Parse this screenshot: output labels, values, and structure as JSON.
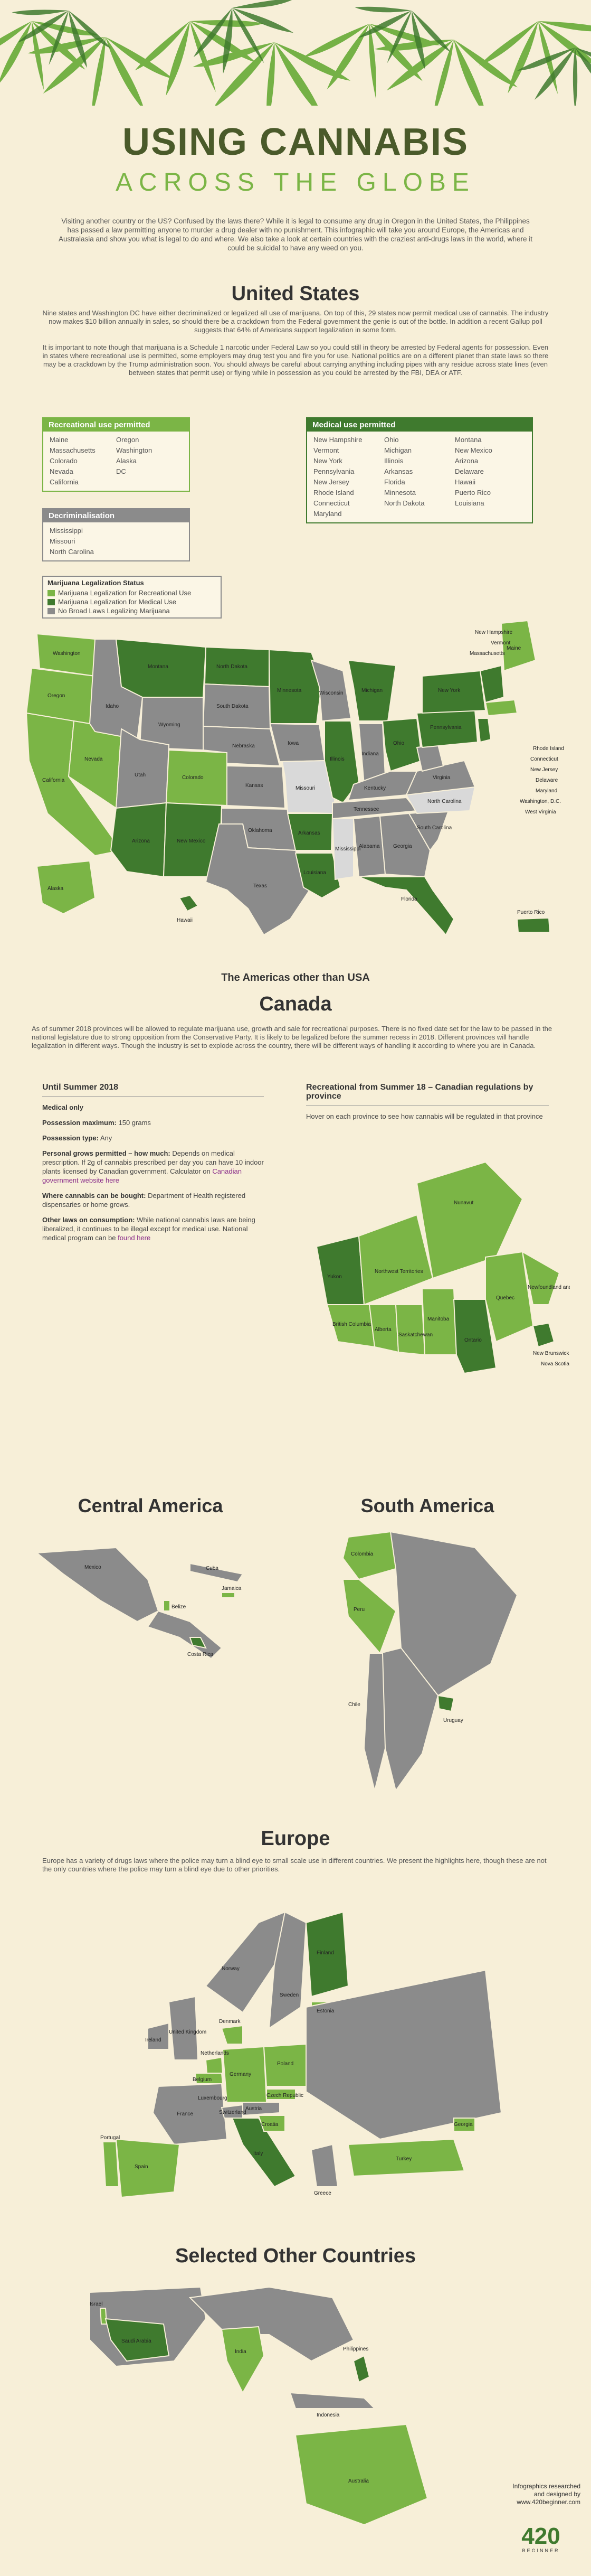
{
  "header": {
    "title": "USING CANNABIS",
    "subtitle": "ACROSS THE GLOBE",
    "intro": "Visiting another country or the US? Confused by the laws there? While it is legal to consume any drug in Oregon in the United States, the Philippines has passed a law permitting anyone to murder a drug dealer with no punishment. This infographic will take you around Europe, the Americas and Australasia and show you what is legal to do and where. We also take a look at certain countries with the craziest anti-drugs laws in the world, where it could be suicidal to have any weed on you."
  },
  "us": {
    "title": "United States",
    "p1": "Nine states and Washington DC have either decriminalized or legalized all use of marijuana. On top of this, 29 states now permit medical use of cannabis. The industry now makes $10 billion annually in sales, so should there be a crackdown from the Federal government the genie is out of the bottle. In addition a recent Gallup poll suggests that 64% of Americans support legalization in some form.",
    "p2": "It is important to note though that marijuana is a Schedule 1 narcotic under Federal Law so you could still in theory be arrested by Federal agents for possession. Even in states where recreational use is permitted, some employers may drug test you and fire you for use. National politics are on a different planet than state laws so there may be a crackdown by the Trump administration soon. You should always be careful about carrying anything including pipes with any residue across state lines (even between states that permit use) or flying while in possession as you could be arrested by the FBI, DEA or ATF.",
    "recreational": {
      "title": "Recreational use permitted",
      "col1": [
        "Maine",
        "Massachusetts",
        "Colorado",
        "Nevada",
        "California"
      ],
      "col2": [
        "Oregon",
        "Washington",
        "Alaska",
        "DC"
      ]
    },
    "decrim": {
      "title": "Decriminalisation",
      "col1": [
        "Mississippi",
        "Missouri",
        "North Carolina"
      ]
    },
    "medical": {
      "title": "Medical use permitted",
      "col1": [
        "New Hampshire",
        "Vermont",
        "New York",
        "Pennsylvania",
        "New Jersey",
        "Rhode Island",
        "Connecticut",
        "Maryland"
      ],
      "col2": [
        "Ohio",
        "Michigan",
        "Illinois",
        "Arkansas",
        "Florida",
        "Minnesota",
        "North Dakota"
      ],
      "col3": [
        "Montana",
        "New Mexico",
        "Arizona",
        "Delaware",
        "Hawaii",
        "Puerto Rico",
        "Louisiana"
      ]
    },
    "legend": {
      "title": "Marijuana Legalization Status",
      "items": [
        {
          "label": "Marijuana Legalization for Recreational Use",
          "color": "#7bb546"
        },
        {
          "label": "Marijuana Legalization for Medical Use",
          "color": "#3f7a2e"
        },
        {
          "label": "No Broad Laws Legalizing Marijuana",
          "color": "#8b8b8b"
        }
      ]
    },
    "map_labels": {
      "washington": "Washington",
      "oregon": "Oregon",
      "california": "California",
      "nevada": "Nevada",
      "idaho": "Idaho",
      "montana": "Montana",
      "wyoming": "Wyoming",
      "utah": "Utah",
      "arizona": "Arizona",
      "colorado": "Colorado",
      "newmexico": "New Mexico",
      "northdakota": "North Dakota",
      "southdakota": "South Dakota",
      "nebraska": "Nebraska",
      "kansas": "Kansas",
      "oklahoma": "Oklahoma",
      "texas": "Texas",
      "minnesota": "Minnesota",
      "iowa": "Iowa",
      "missouri": "Missouri",
      "arkansas": "Arkansas",
      "louisiana": "Louisiana",
      "wisconsin": "Wisconsin",
      "illinois": "Illinois",
      "michigan": "Michigan",
      "indiana": "Indiana",
      "ohio": "Ohio",
      "kentucky": "Kentucky",
      "tennessee": "Tennessee",
      "mississippi": "Mississippi",
      "alabama": "Alabama",
      "georgia": "Georgia",
      "florida": "Florida",
      "southcarolina": "South Carolina",
      "northcarolina": "North Carolina",
      "virginia": "Virginia",
      "pennsylvania": "Pennsylvania",
      "newyork": "New York",
      "maine": "Maine",
      "alaska": "Alaska",
      "hawaii": "Hawaii",
      "puertorico": "Puerto Rico",
      "newhampshire": "New Hampshire",
      "vermont": "Vermont",
      "massachusetts": "Massachusetts",
      "rhodeisland": "Rhode Island",
      "connecticut": "Connecticut",
      "newjersey": "New Jersey",
      "delaware": "Delaware",
      "maryland": "Maryland",
      "washingtondc": "Washington, D.C.",
      "westvirginia": "West Virginia"
    }
  },
  "americas": {
    "title": "The Americas other than USA"
  },
  "canada": {
    "title": "Canada",
    "intro": "As of summer 2018 provinces will be allowed to regulate marijuana use, growth and sale for recreational purposes. There is no fixed date set for the law to be passed in the national legislature due to strong opposition from the Conservative Party. It is likely to be legalized before the summer recess in 2018. Different provinces will handle legalization in different ways. Though the industry is set to explode across the country, there will be different ways of handling it according to where you are in Canada.",
    "left": {
      "title": "Until Summer 2018",
      "l1": "Medical only",
      "l2k": "Possession maximum:",
      "l2v": " 150 grams",
      "l3k": "Possession type:",
      "l3v": " Any",
      "l4k": "Personal grows permitted – how much:",
      "l4v": " Depends on medical prescription. If 2g of cannabis prescribed per day you can have 10 indoor plants licensed by Canadian government. Calculator on ",
      "l4link": "Canadian government website here",
      "l5k": "Where cannabis can be bought:",
      "l5v": " Department of Health registered dispensaries or home grows.",
      "l6k": "Other laws on consumption:",
      "l6v": " While national cannabis laws are being liberalized, it continues to be illegal except for medical use. National medical program can be ",
      "l6link": "found here"
    },
    "right": {
      "title": "Recreational from Summer 18 – Canadian regulations by province",
      "text": "Hover on each province to see how cannabis will be regulated in that province"
    },
    "map_labels": {
      "yukon": "Yukon",
      "nwt": "Northwest Territories",
      "nunavut": "Nunavut",
      "bc": "British Columbia",
      "alberta": "Alberta",
      "sask": "Saskatchewan",
      "manitoba": "Manitoba",
      "ontario": "Ontario",
      "quebec": "Quebec",
      "nl": "Newfoundland and Labrador",
      "nb": "New Brunswick",
      "ns": "Nova Scotia",
      "pei": "Prince Edward Island"
    }
  },
  "central": {
    "title": "Central America",
    "labels": {
      "mexico": "Mexico",
      "belize": "Belize",
      "cuba": "Cuba",
      "costarica": "Costa Rica",
      "jamaica": "Jamaica"
    }
  },
  "south": {
    "title": "South America",
    "labels": {
      "colombia": "Colombia",
      "peru": "Peru",
      "chile": "Chile",
      "uruguay": "Uruguay"
    }
  },
  "europe": {
    "title": "Europe",
    "intro": "Europe has a variety of drugs laws where the police may turn a blind eye to small scale use in different countries. We present the highlights here, though these are not the only countries where the police may turn a blind eye due to other priorities.",
    "labels": {
      "norway": "Norway",
      "finland": "Finland",
      "sweden": "Sweden",
      "estonia": "Estonia",
      "denmark": "Denmark",
      "ireland": "Ireland",
      "uk": "United Kingdom",
      "netherlands": "Netherlands",
      "belgium": "Belgium",
      "germany": "Germany",
      "poland": "Poland",
      "czech": "Czech Republic",
      "luxembourg": "Luxembourg",
      "france": "France",
      "switzerland": "Switzerland",
      "austria": "Austria",
      "croatia": "Croatia",
      "italy": "Italy",
      "spain": "Spain",
      "portugal": "Portugal",
      "greece": "Greece",
      "turkey": "Turkey",
      "georgia": "Georgia"
    }
  },
  "other": {
    "title": "Selected Other Countries",
    "labels": {
      "israel": "Israel",
      "saudi": "Saudi Arabia",
      "india": "India",
      "philippines": "Philippines",
      "indonesia": "Indonesia",
      "australia": "Australia"
    }
  },
  "credit": {
    "line1": "Infographics researched",
    "line2": "and designed by",
    "line3": "www.420beginner.com",
    "logo": "420",
    "logo_sub": "BEGINNER"
  },
  "colors": {
    "recreational": "#7bb546",
    "medical": "#3f7a2e",
    "none": "#8b8b8b",
    "decrim": "#d9d9d9",
    "title": "#4a5a2a",
    "accent": "#7bb546",
    "background": "#f7efd8"
  }
}
